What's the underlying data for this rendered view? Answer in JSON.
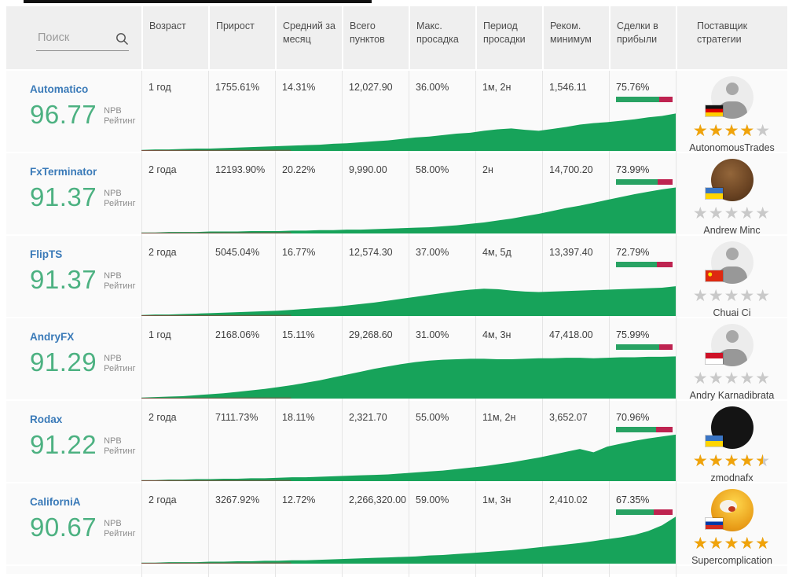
{
  "search": {
    "placeholder": "Поиск"
  },
  "header": {
    "columns": [
      "Возраст",
      "Прирост",
      "Средний за месяц",
      "Всего пунктов",
      "Макс. просадка",
      "Период просадки",
      "Реком. минимум",
      "Сделки в прибыли",
      "Поставщик стратегии"
    ]
  },
  "rating_label": {
    "line1": "NPB",
    "line2": "Рейтинг"
  },
  "colors": {
    "link_blue": "#3a7ab8",
    "rating_green": "#4cb181",
    "chart_green": "#17a35a",
    "chart_red_line": "#9e3b3b",
    "bar_green": "#28a263",
    "bar_red": "#be2350",
    "star_gold": "#f0a30a",
    "star_gray": "#c9c9c9"
  },
  "rows": [
    {
      "name": "Automatico",
      "rating": "96.77",
      "age": "1 год",
      "growth": "1755.61%",
      "monthly_avg": "14.31%",
      "total_points": "12,027.90",
      "max_drawdown": "36.00%",
      "drawdown_period": "1м, 2н",
      "recommended_min": "1,546.11",
      "profit_trades": "75.76%",
      "profit_pct": 75.76,
      "stars": 4,
      "provider": "AutonomousTrades",
      "avatar": "male-silhouette",
      "flag": "germany",
      "sparkline": [
        0.02,
        0.03,
        0.03,
        0.04,
        0.05,
        0.05,
        0.06,
        0.07,
        0.08,
        0.09,
        0.1,
        0.11,
        0.12,
        0.13,
        0.15,
        0.16,
        0.18,
        0.2,
        0.22,
        0.25,
        0.28,
        0.3,
        0.33,
        0.36,
        0.38,
        0.42,
        0.45,
        0.47,
        0.44,
        0.42,
        0.46,
        0.5,
        0.55,
        0.58,
        0.6,
        0.63,
        0.66,
        0.7,
        0.73,
        0.78
      ]
    },
    {
      "name": "FxTerminator",
      "rating": "91.37",
      "age": "2 года",
      "growth": "12193.90%",
      "monthly_avg": "20.22%",
      "total_points": "9,990.00",
      "max_drawdown": "58.00%",
      "drawdown_period": "2н",
      "recommended_min": "14,700.20",
      "profit_trades": "73.99%",
      "profit_pct": 73.99,
      "stars": 0,
      "provider": "Andrew Minc",
      "avatar": "bull",
      "flag": "ukraine",
      "sparkline": [
        0.02,
        0.02,
        0.03,
        0.03,
        0.03,
        0.04,
        0.04,
        0.04,
        0.05,
        0.05,
        0.05,
        0.06,
        0.06,
        0.07,
        0.07,
        0.08,
        0.08,
        0.09,
        0.1,
        0.11,
        0.12,
        0.13,
        0.15,
        0.17,
        0.2,
        0.23,
        0.27,
        0.31,
        0.36,
        0.41,
        0.47,
        0.53,
        0.58,
        0.64,
        0.7,
        0.76,
        0.82,
        0.87,
        0.92,
        0.96
      ]
    },
    {
      "name": "FlipTS",
      "rating": "91.37",
      "age": "2 года",
      "growth": "5045.04%",
      "monthly_avg": "16.77%",
      "total_points": "12,574.30",
      "max_drawdown": "37.00%",
      "drawdown_period": "4м, 5д",
      "recommended_min": "13,397.40",
      "profit_trades": "72.79%",
      "profit_pct": 72.79,
      "stars": 0,
      "provider": "Chuai Ci",
      "avatar": "male-silhouette",
      "flag": "china",
      "sparkline": [
        0.02,
        0.03,
        0.03,
        0.04,
        0.05,
        0.06,
        0.07,
        0.08,
        0.09,
        0.1,
        0.11,
        0.13,
        0.15,
        0.17,
        0.19,
        0.22,
        0.25,
        0.28,
        0.32,
        0.36,
        0.4,
        0.44,
        0.48,
        0.52,
        0.55,
        0.57,
        0.56,
        0.53,
        0.51,
        0.5,
        0.51,
        0.52,
        0.53,
        0.54,
        0.55,
        0.56,
        0.57,
        0.58,
        0.59,
        0.62
      ]
    },
    {
      "name": "AndryFX",
      "rating": "91.29",
      "age": "1 год",
      "growth": "2168.06%",
      "monthly_avg": "15.11%",
      "total_points": "29,268.60",
      "max_drawdown": "31.00%",
      "drawdown_period": "4м, 3н",
      "recommended_min": "47,418.00",
      "profit_trades": "75.99%",
      "profit_pct": 75.99,
      "stars": 0,
      "provider": "Andry Karnadibrata",
      "avatar": "male-silhouette",
      "flag": "indonesia",
      "sparkline": [
        0.02,
        0.03,
        0.04,
        0.05,
        0.07,
        0.09,
        0.11,
        0.14,
        0.17,
        0.2,
        0.24,
        0.28,
        0.33,
        0.38,
        0.44,
        0.5,
        0.56,
        0.62,
        0.67,
        0.72,
        0.76,
        0.79,
        0.81,
        0.82,
        0.83,
        0.83,
        0.82,
        0.82,
        0.83,
        0.84,
        0.84,
        0.85,
        0.85,
        0.84,
        0.85,
        0.86,
        0.86,
        0.87,
        0.87,
        0.88
      ]
    },
    {
      "name": "Rodax",
      "rating": "91.22",
      "age": "2 года",
      "growth": "7111.73%",
      "monthly_avg": "18.11%",
      "total_points": "2,321.70",
      "max_drawdown": "55.00%",
      "drawdown_period": "11м, 2н",
      "recommended_min": "3,652.07",
      "profit_trades": "70.96%",
      "profit_pct": 70.96,
      "stars": 4.5,
      "provider": "zmodnafx",
      "avatar": "dark-logo",
      "flag": "ukraine",
      "sparkline": [
        0.02,
        0.02,
        0.03,
        0.03,
        0.04,
        0.04,
        0.05,
        0.05,
        0.06,
        0.06,
        0.07,
        0.08,
        0.08,
        0.09,
        0.1,
        0.11,
        0.12,
        0.13,
        0.14,
        0.16,
        0.18,
        0.2,
        0.22,
        0.25,
        0.28,
        0.31,
        0.35,
        0.39,
        0.44,
        0.49,
        0.55,
        0.61,
        0.67,
        0.6,
        0.72,
        0.78,
        0.84,
        0.89,
        0.93,
        0.97
      ]
    },
    {
      "name": "CaliforniA",
      "rating": "90.67",
      "age": "2 года",
      "growth": "3267.92%",
      "monthly_avg": "12.72%",
      "total_points": "2,266,320.00",
      "max_drawdown": "59.00%",
      "drawdown_period": "1м, 3н",
      "recommended_min": "2,410.02",
      "profit_trades": "67.35%",
      "profit_pct": 67.35,
      "stars": 4.8,
      "provider": "Supercomplication",
      "avatar": "cartoon",
      "flag": "russia",
      "sparkline": [
        0.02,
        0.02,
        0.03,
        0.03,
        0.03,
        0.04,
        0.04,
        0.05,
        0.05,
        0.06,
        0.06,
        0.07,
        0.07,
        0.08,
        0.09,
        0.1,
        0.11,
        0.12,
        0.13,
        0.14,
        0.15,
        0.17,
        0.18,
        0.2,
        0.22,
        0.24,
        0.26,
        0.28,
        0.31,
        0.34,
        0.37,
        0.4,
        0.43,
        0.47,
        0.51,
        0.55,
        0.6,
        0.68,
        0.8,
        0.98
      ]
    }
  ]
}
